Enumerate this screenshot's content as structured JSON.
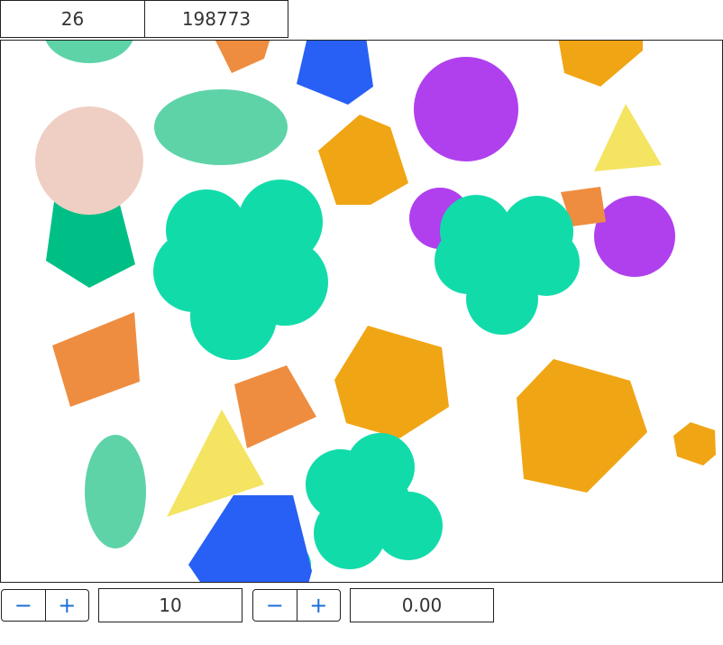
{
  "header": {
    "score": "26",
    "total": "198773"
  },
  "controls": {
    "stepper_1": {
      "minus_label": "−",
      "plus_label": "+"
    },
    "value_1": "10",
    "stepper_2": {
      "minus_label": "−",
      "plus_label": "+"
    },
    "value_2": "0.00"
  },
  "colors": {
    "mint": "#5ed3a8",
    "teal": "#12dbaa",
    "emerald": "#00bf86",
    "orange": "#ee8d40",
    "gold": "#f0a514",
    "yellow": "#f4e461",
    "purple": "#b040ee",
    "blue": "#2860f5",
    "peach": "#efcfc3"
  }
}
